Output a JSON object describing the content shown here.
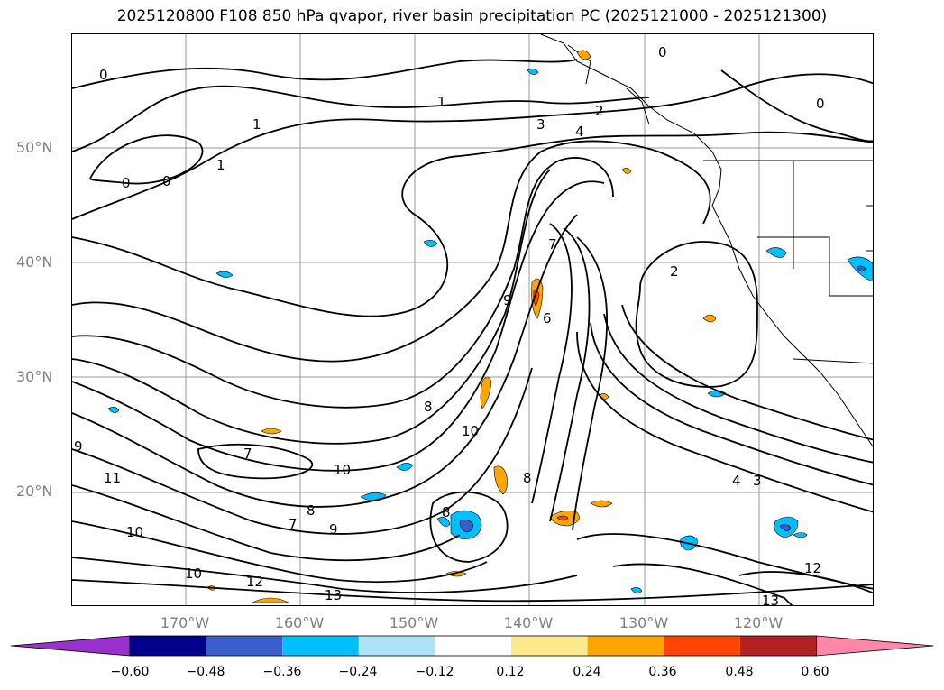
{
  "title": "2025120800 F108 850 hPa qvapor, river basin precipitation PC (2025121000 - 2025121300)",
  "lat_labels": [
    "50°N",
    "40°N",
    "30°N",
    "20°N"
  ],
  "lon_labels": [
    "170°W",
    "160°W",
    "150°W",
    "140°W",
    "130°W",
    "120°W"
  ],
  "colorbar": {
    "ticks": [
      "−0.60",
      "−0.48",
      "−0.36",
      "−0.24",
      "−0.12",
      "0.12",
      "0.24",
      "0.36",
      "0.48",
      "0.60"
    ],
    "colors": [
      "#9932CC",
      "#00008B",
      "#3A5FCD",
      "#00BFFF",
      "#ADE2F8",
      "#FFFFFF",
      "#FCE98C",
      "#FFA500",
      "#FF4500",
      "#B22222",
      "#FF88AA"
    ],
    "extend": "both"
  },
  "contour_labels": [
    "0",
    "1",
    "1",
    "0",
    "0",
    "1",
    "2",
    "3",
    "4",
    "0",
    "2",
    "7",
    "6",
    "9",
    "10",
    "8",
    "7",
    "8",
    "10",
    "11",
    "10",
    "10",
    "7",
    "8",
    "9",
    "12",
    "13",
    "12",
    "13",
    "4",
    "3",
    "9",
    "8",
    "0"
  ]
}
